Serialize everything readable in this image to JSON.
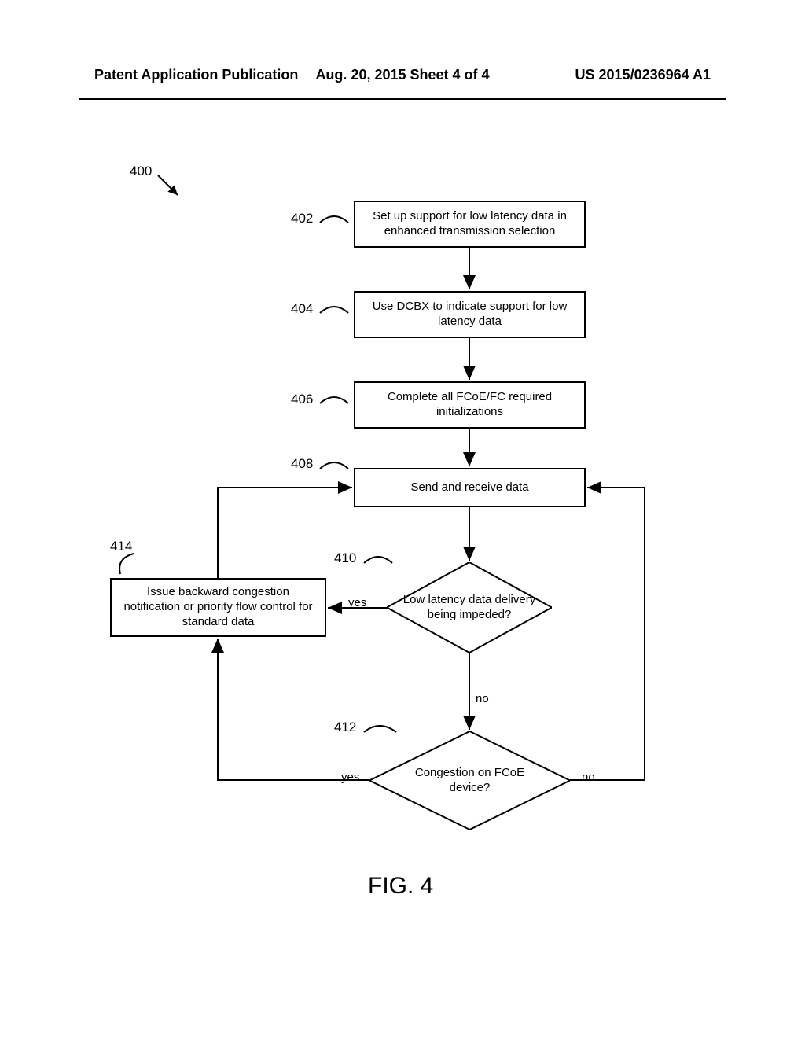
{
  "header": {
    "left": "Patent Application Publication",
    "center": "Aug. 20, 2015  Sheet 4 of 4",
    "right": "US 2015/0236964 A1"
  },
  "figure": {
    "title": "FIG. 4",
    "ref": "400",
    "nodes": {
      "n402": {
        "ref": "402",
        "text": "Set up support for low latency data in\nenhanced transmission selection"
      },
      "n404": {
        "ref": "404",
        "text": "Use DCBX to indicate support for low\nlatency data"
      },
      "n406": {
        "ref": "406",
        "text": "Complete all FCoE/FC required\ninitializations"
      },
      "n408": {
        "ref": "408",
        "text": "Send and receive data"
      },
      "n410": {
        "ref": "410",
        "text": "Low latency data delivery\nbeing impeded?"
      },
      "n412": {
        "ref": "412",
        "text": "Congestion on FCoE\ndevice?"
      },
      "n414": {
        "ref": "414",
        "text": "Issue backward congestion\nnotification or priority flow control for\nstandard data"
      }
    },
    "edges": {
      "yes": "yes",
      "no": "no"
    },
    "style": {
      "stroke": "#000000",
      "stroke_width": 2,
      "arrow_size": 10,
      "background": "#ffffff",
      "font_family": "Arial",
      "node_fontsize": 15,
      "label_fontsize": 17
    }
  }
}
